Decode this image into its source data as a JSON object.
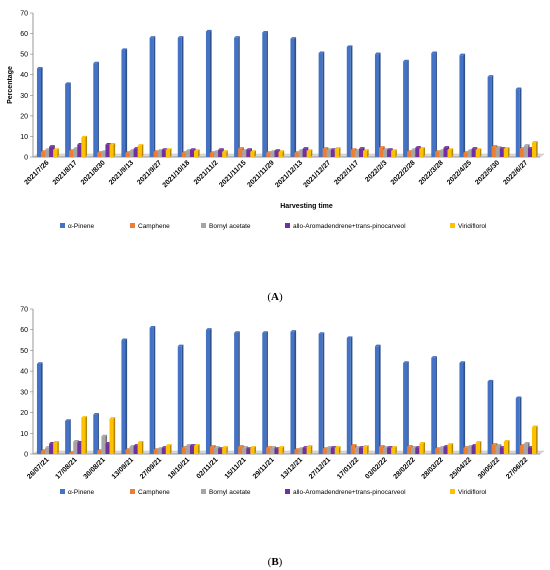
{
  "chart_data": [
    {
      "type": "bar",
      "panel_label": "(A)",
      "xlabel": "Harvesting time",
      "ylabel": "Percentage",
      "ylim": [
        0,
        70
      ],
      "yticks": [
        0,
        10,
        20,
        30,
        40,
        50,
        60,
        70
      ],
      "grid": false,
      "legend_position": "bottom",
      "categories": [
        "2021/7/26",
        "2021/8/17",
        "2021/8/30",
        "2021/9/13",
        "2021/9/27",
        "2021/10/18",
        "2021/11/2",
        "2021/11/15",
        "2021/11/29",
        "2021/12/13",
        "2021/12/27",
        "2022/1/17",
        "2022/2/3",
        "2022/2/28",
        "2022/3/28",
        "2022/4/25",
        "2022/5/30",
        "2022/6/27"
      ],
      "series": [
        {
          "name": "α-Pinene",
          "color": "#4472C4",
          "values": [
            43,
            35.5,
            45.5,
            52,
            58,
            58,
            61,
            58,
            60.5,
            57.5,
            50.5,
            53.5,
            50,
            46.5,
            50.5,
            49.5,
            39,
            33
          ]
        },
        {
          "name": "Camphene",
          "color": "#ED7D31",
          "values": [
            2.5,
            3,
            2,
            2,
            2.5,
            2,
            2,
            4,
            2,
            2,
            4,
            3.5,
            4.5,
            2.5,
            2.5,
            2,
            5,
            4
          ]
        },
        {
          "name": "Bornyl acetate",
          "color": "#A5A5A5",
          "values": [
            3.5,
            4,
            2.5,
            3,
            3,
            3,
            2.5,
            3,
            2.5,
            3,
            3.5,
            3,
            3.5,
            3.5,
            3,
            3,
            4.5,
            5.5
          ]
        },
        {
          "name": "allo-Aromadendrene+trans-pinocarveol",
          "color": "#7030A0",
          "values": [
            5,
            6,
            6,
            4,
            3.5,
            3.5,
            3.5,
            3.5,
            3,
            4,
            3.5,
            4,
            3.5,
            4.5,
            4.5,
            4,
            4,
            4
          ]
        },
        {
          "name": "Viridiflorol",
          "color": "#FFC000",
          "values": [
            3.5,
            9.5,
            6,
            5.5,
            3.5,
            3,
            2.5,
            2.5,
            2.5,
            3,
            4,
            3,
            3,
            4,
            3.5,
            3.5,
            4,
            7
          ]
        }
      ]
    },
    {
      "type": "bar",
      "panel_label": "(B)",
      "xlabel": "",
      "ylabel": "",
      "ylim": [
        0,
        70
      ],
      "yticks": [
        0,
        10,
        20,
        30,
        40,
        50,
        60,
        70
      ],
      "grid": false,
      "legend_position": "bottom",
      "categories": [
        "26/07/21",
        "17/08/21",
        "30/08/21",
        "13/09/21",
        "27/09/21",
        "18/10/21",
        "02/11/21",
        "15/11/21",
        "29/11/21",
        "13/12/21",
        "27/12/21",
        "17/01/22",
        "03/02/22",
        "28/02/22",
        "28/03/22",
        "25/04/22",
        "30/05/22",
        "27/06/22"
      ],
      "series": [
        {
          "name": "α-Pinene",
          "color": "#4472C4",
          "values": [
            43.5,
            16,
            19,
            55,
            61,
            52,
            60,
            58.5,
            58.5,
            59,
            58,
            56,
            52,
            44,
            46.5,
            44,
            35,
            27
          ]
        },
        {
          "name": "Camphene",
          "color": "#ED7D31",
          "values": [
            1.5,
            0.5,
            1.5,
            2,
            2,
            3,
            3.5,
            3.5,
            3,
            2,
            2.5,
            4,
            3.5,
            3.5,
            2.5,
            3,
            4.5,
            4
          ]
        },
        {
          "name": "Bornyl acetate",
          "color": "#A5A5A5",
          "values": [
            3,
            6,
            8.5,
            3.5,
            2.5,
            4,
            3,
            3,
            3,
            2.5,
            3,
            3,
            3,
            3,
            3,
            3.5,
            4,
            5
          ]
        },
        {
          "name": "allo-Aromadendrene+trans-pinocarveol",
          "color": "#7030A0",
          "values": [
            5,
            5.5,
            5,
            4,
            3,
            4,
            2.5,
            2.5,
            2.5,
            3,
            3,
            3,
            3,
            3,
            3.5,
            4,
            3,
            3
          ]
        },
        {
          "name": "Viridiflorol",
          "color": "#FFC000",
          "values": [
            5.5,
            17.5,
            17,
            5.5,
            4,
            4,
            3,
            3,
            3,
            3.5,
            3,
            3.5,
            3,
            5,
            4.5,
            5.5,
            6,
            13
          ]
        }
      ]
    }
  ]
}
